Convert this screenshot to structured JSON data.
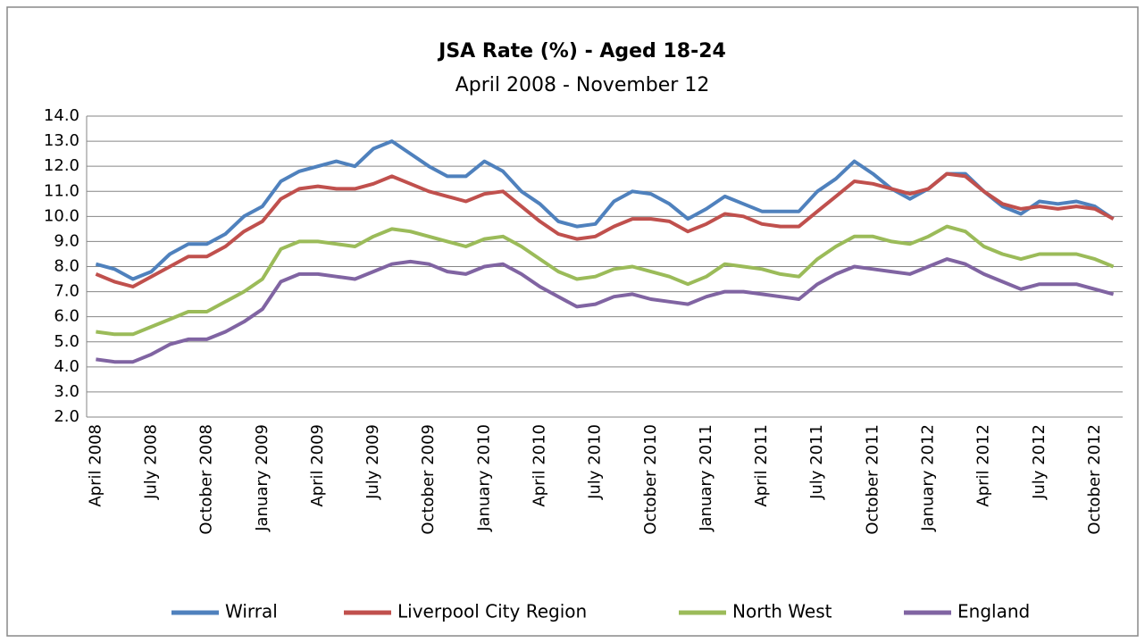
{
  "chart_data": {
    "type": "line",
    "title": "JSA Rate (%) - Aged 18-24",
    "subtitle": "April 2008 - November 12",
    "categories": [
      "April 2008",
      null,
      null,
      "July 2008",
      null,
      null,
      "October 2008",
      null,
      null,
      "January 2009",
      null,
      null,
      "April 2009",
      null,
      null,
      "July 2009",
      null,
      null,
      "October 2009",
      null,
      null,
      "January 2010",
      null,
      null,
      "April 2010",
      null,
      null,
      "July 2010",
      null,
      null,
      "October 2010",
      null,
      null,
      "January 2011",
      null,
      null,
      "April 2011",
      null,
      null,
      "July 2011",
      null,
      null,
      "October 2011",
      null,
      null,
      "January 2012",
      null,
      null,
      "April 2012",
      null,
      null,
      "July 2012",
      null,
      null,
      "October 2012",
      null
    ],
    "series": [
      {
        "name": "Wirral",
        "color": "#4f81bd",
        "values": [
          8.1,
          7.9,
          7.5,
          7.8,
          8.5,
          8.9,
          8.9,
          9.3,
          10.0,
          10.4,
          11.4,
          11.8,
          12.0,
          12.2,
          12.0,
          12.7,
          13.0,
          12.5,
          12.0,
          11.6,
          11.6,
          12.2,
          11.8,
          11.0,
          10.5,
          9.8,
          9.6,
          9.7,
          10.6,
          11.0,
          10.9,
          10.5,
          9.9,
          10.3,
          10.8,
          10.5,
          10.2,
          10.2,
          10.2,
          11.0,
          11.5,
          12.2,
          11.7,
          11.1,
          10.7,
          11.1,
          11.7,
          11.7,
          11.0,
          10.4,
          10.1,
          10.6,
          10.5,
          10.6,
          10.4,
          9.9
        ]
      },
      {
        "name": "Liverpool City Region",
        "color": "#c0504d",
        "values": [
          7.7,
          7.4,
          7.2,
          7.6,
          8.0,
          8.4,
          8.4,
          8.8,
          9.4,
          9.8,
          10.7,
          11.1,
          11.2,
          11.1,
          11.1,
          11.3,
          11.6,
          11.3,
          11.0,
          10.8,
          10.6,
          10.9,
          11.0,
          10.4,
          9.8,
          9.3,
          9.1,
          9.2,
          9.6,
          9.9,
          9.9,
          9.8,
          9.4,
          9.7,
          10.1,
          10.0,
          9.7,
          9.6,
          9.6,
          10.2,
          10.8,
          11.4,
          11.3,
          11.1,
          10.9,
          11.1,
          11.7,
          11.6,
          11.0,
          10.5,
          10.3,
          10.4,
          10.3,
          10.4,
          10.3,
          9.9
        ]
      },
      {
        "name": "North West",
        "color": "#9bbb59",
        "values": [
          5.4,
          5.3,
          5.3,
          5.6,
          5.9,
          6.2,
          6.2,
          6.6,
          7.0,
          7.5,
          8.7,
          9.0,
          9.0,
          8.9,
          8.8,
          9.2,
          9.5,
          9.4,
          9.2,
          9.0,
          8.8,
          9.1,
          9.2,
          8.8,
          8.3,
          7.8,
          7.5,
          7.6,
          7.9,
          8.0,
          7.8,
          7.6,
          7.3,
          7.6,
          8.1,
          8.0,
          7.9,
          7.7,
          7.6,
          8.3,
          8.8,
          9.2,
          9.2,
          9.0,
          8.9,
          9.2,
          9.6,
          9.4,
          8.8,
          8.5,
          8.3,
          8.5,
          8.5,
          8.5,
          8.3,
          8.0
        ]
      },
      {
        "name": "England",
        "color": "#8064a2",
        "values": [
          4.3,
          4.2,
          4.2,
          4.5,
          4.9,
          5.1,
          5.1,
          5.4,
          5.8,
          6.3,
          7.4,
          7.7,
          7.7,
          7.6,
          7.5,
          7.8,
          8.1,
          8.2,
          8.1,
          7.8,
          7.7,
          8.0,
          8.1,
          7.7,
          7.2,
          6.8,
          6.4,
          6.5,
          6.8,
          6.9,
          6.7,
          6.6,
          6.5,
          6.8,
          7.0,
          7.0,
          6.9,
          6.8,
          6.7,
          7.3,
          7.7,
          8.0,
          7.9,
          7.8,
          7.7,
          8.0,
          8.3,
          8.1,
          7.7,
          7.4,
          7.1,
          7.3,
          7.3,
          7.3,
          7.1,
          6.9
        ]
      }
    ],
    "ylim": [
      2,
      14
    ],
    "yticks": [
      {
        "value": 2,
        "label": "2.0"
      },
      {
        "value": 3,
        "label": "3.0"
      },
      {
        "value": 4,
        "label": "4.0"
      },
      {
        "value": 5,
        "label": "5.0"
      },
      {
        "value": 6,
        "label": "6.0"
      },
      {
        "value": 7,
        "label": "7.0"
      },
      {
        "value": 8,
        "label": "8.0"
      },
      {
        "value": 9,
        "label": "9.0"
      },
      {
        "value": 10,
        "label": "10.0"
      },
      {
        "value": 11,
        "label": "11.0"
      },
      {
        "value": 12,
        "label": "12.0"
      },
      {
        "value": 13,
        "label": "13.0"
      },
      {
        "value": 14,
        "label": "14.0"
      }
    ],
    "grid": true,
    "legend": "bottom"
  }
}
